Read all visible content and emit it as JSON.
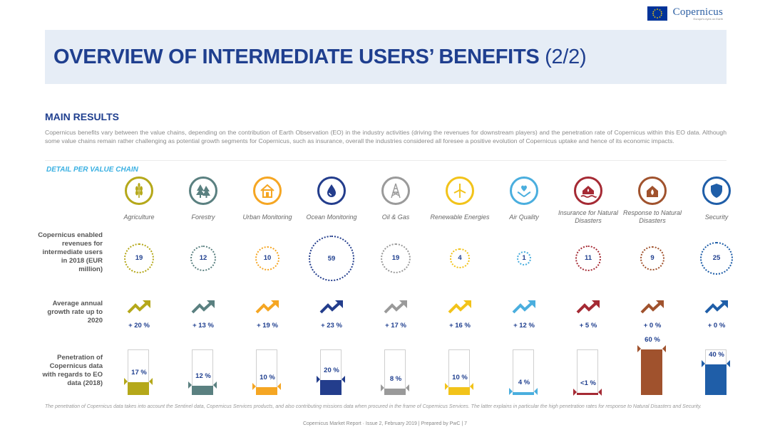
{
  "logo": {
    "brand": "Copernicus",
    "tagline": "Europe's eyes on Earth"
  },
  "title": {
    "main": "OVERVIEW OF INTERMEDIATE USERS’ BENEFITS",
    "suffix": "(2/2)"
  },
  "main_results": "MAIN RESULTS",
  "intro": "Copernicus benefits vary between the value chains, depending on the contribution of Earth Observation (EO) in the industry activities (driving the revenues for downstream players) and the penetration rate of Copernicus within this EO data. Although some value chains remain rather challenging as potential growth segments for Copernicus, such as insurance, overall the industries considered all foresee a positive evolution of Copernicus uptake and hence of its economic impacts.",
  "detail_heading": "DETAIL PER VALUE CHAIN",
  "row_labels": {
    "revenues": "Copernicus enabled revenues for intermediate users in 2018 (EUR million)",
    "growth": "Average annual growth rate up to 2020",
    "penetration": "Penetration of Copernicus data with regards to EO data (2018)"
  },
  "chains": [
    {
      "name": "Agriculture",
      "icon": "wheat-icon",
      "color": "#b5a81a",
      "revenue": "19",
      "growth": "+ 20 %",
      "penetration_label": "17 %",
      "penetration": 17
    },
    {
      "name": "Forestry",
      "icon": "trees-icon",
      "color": "#5a8080",
      "revenue": "12",
      "growth": "+ 13 %",
      "penetration_label": "12 %",
      "penetration": 12
    },
    {
      "name": "Urban Monitoring",
      "icon": "house-icon",
      "color": "#f5a623",
      "revenue": "10",
      "growth": "+ 19 %",
      "penetration_label": "10 %",
      "penetration": 10
    },
    {
      "name": "Ocean Monitoring",
      "icon": "water-drop-icon",
      "color": "#233d8c",
      "revenue": "59",
      "growth": "+ 23 %",
      "penetration_label": "20 %",
      "penetration": 20
    },
    {
      "name": "Oil & Gas",
      "icon": "oil-derrick-icon",
      "color": "#9a9a9a",
      "revenue": "19",
      "growth": "+ 17 %",
      "penetration_label": "8 %",
      "penetration": 8
    },
    {
      "name": "Renewable Energies",
      "icon": "wind-turbine-icon",
      "color": "#f2c31a",
      "revenue": "4",
      "growth": "+ 16 %",
      "penetration_label": "10 %",
      "penetration": 10
    },
    {
      "name": "Air Quality",
      "icon": "heart-hands-icon",
      "color": "#4aaede",
      "revenue": "1",
      "growth": "+ 12 %",
      "penetration_label": "4 %",
      "penetration": 4
    },
    {
      "name": "Insurance for Natural Disasters",
      "icon": "flood-house-icon",
      "color": "#a52a34",
      "revenue": "11",
      "growth": "+ 5 %",
      "penetration_label": "<1 %",
      "penetration": 1
    },
    {
      "name": "Response to Natural Disasters",
      "icon": "fire-house-icon",
      "color": "#a0522d",
      "revenue": "9",
      "growth": "+ 0 %",
      "penetration_label": "60 %",
      "penetration": 60
    },
    {
      "name": "Security",
      "icon": "shield-icon",
      "color": "#1f5ea8",
      "revenue": "25",
      "growth": "+ 0 %",
      "penetration_label": "40 %",
      "penetration": 40
    }
  ],
  "footnote": "The penetration of Copernicus data takes into account the Sentinel data, Copernicus Services products, and also contributing missions data when procured in the frame of Copernicus Services. The latter explains in particular the high penetration rates for response to Natural Disasters and Security.",
  "footer": "Copernicus Market Report · Issue 2, February 2019 | Prepared by PwC |      7"
}
